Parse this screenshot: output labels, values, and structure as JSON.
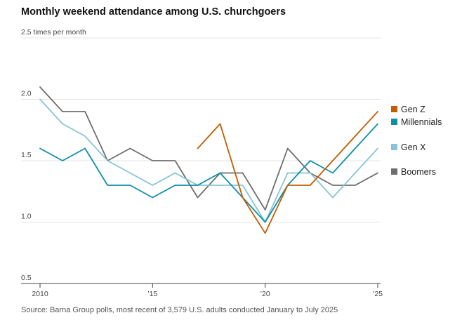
{
  "chart_data": {
    "type": "line",
    "title": "Monthly weekend attendance among U.S. churchgoers",
    "source": "Source: Barna Group polls, most recent of 3,579 U.S. adults conducted January to July 2025",
    "ylabel_unit": "times per month",
    "y_ticks": [
      {
        "value": 2.5,
        "label": "2.5 times per month"
      },
      {
        "value": 2.0,
        "label": "2.0"
      },
      {
        "value": 1.5,
        "label": "1.5"
      },
      {
        "value": 1.0,
        "label": "1.0"
      },
      {
        "value": 0.5,
        "label": "0.5"
      }
    ],
    "x_ticks": [
      {
        "value": 2010,
        "label": "2010"
      },
      {
        "value": 2015,
        "label": "’15"
      },
      {
        "value": 2020,
        "label": "’20"
      },
      {
        "value": 2025,
        "label": "’25"
      }
    ],
    "xlim": [
      2010,
      2025
    ],
    "ylim": [
      0.5,
      2.5
    ],
    "grid": true,
    "legend_placement": "right",
    "series": [
      {
        "name": "Gen Z",
        "color": "#c45c00",
        "x": [
          2017,
          2018,
          2019,
          2020,
          2021,
          2022,
          2023,
          2024,
          2025
        ],
        "y": [
          1.6,
          1.8,
          1.2,
          0.91,
          1.3,
          1.3,
          1.5,
          1.7,
          1.9
        ]
      },
      {
        "name": "Millennials",
        "color": "#0f8ea6",
        "x": [
          2010,
          2011,
          2012,
          2013,
          2014,
          2015,
          2016,
          2017,
          2018,
          2019,
          2020,
          2021,
          2022,
          2023,
          2024,
          2025
        ],
        "y": [
          1.6,
          1.5,
          1.6,
          1.3,
          1.3,
          1.2,
          1.3,
          1.3,
          1.4,
          1.2,
          1.0,
          1.3,
          1.5,
          1.4,
          1.6,
          1.8
        ]
      },
      {
        "name": "Gen X",
        "color": "#86c5d6",
        "x": [
          2010,
          2011,
          2012,
          2013,
          2014,
          2015,
          2016,
          2017,
          2018,
          2019,
          2020,
          2021,
          2022,
          2023,
          2024,
          2025
        ],
        "y": [
          2.0,
          1.8,
          1.7,
          1.5,
          1.4,
          1.3,
          1.4,
          1.3,
          1.3,
          1.3,
          1.0,
          1.4,
          1.4,
          1.2,
          1.4,
          1.6
        ]
      },
      {
        "name": "Boomers",
        "color": "#6e6e6e",
        "x": [
          2010,
          2011,
          2012,
          2013,
          2014,
          2015,
          2016,
          2017,
          2018,
          2019,
          2020,
          2021,
          2022,
          2023,
          2024,
          2025
        ],
        "y": [
          2.1,
          1.9,
          1.9,
          1.5,
          1.6,
          1.5,
          1.5,
          1.2,
          1.4,
          1.4,
          1.1,
          1.6,
          1.4,
          1.3,
          1.3,
          1.4
        ]
      }
    ]
  }
}
